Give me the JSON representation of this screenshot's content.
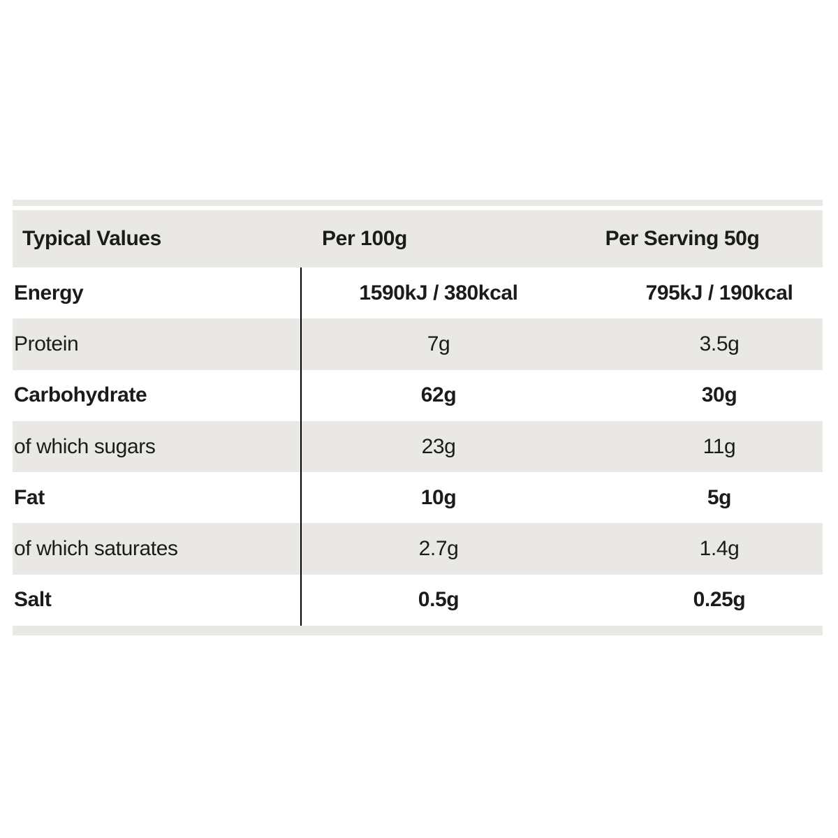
{
  "table": {
    "header": {
      "typical_values": "Typical Values",
      "per_100g": "Per 100g",
      "per_serving": "Per Serving 50g"
    },
    "rows": [
      {
        "nutrient": "Energy",
        "per_100g": "1590kJ / 380kcal",
        "per_serving": "795kJ / 190kcal",
        "emphasis": true
      },
      {
        "nutrient": "Protein",
        "per_100g": "7g",
        "per_serving": "3.5g",
        "emphasis": false
      },
      {
        "nutrient": "Carbohydrate",
        "per_100g": "62g",
        "per_serving": "30g",
        "emphasis": true
      },
      {
        "nutrient": "of which sugars",
        "per_100g": "23g",
        "per_serving": "11g",
        "emphasis": false
      },
      {
        "nutrient": "Fat",
        "per_100g": "10g",
        "per_serving": "5g",
        "emphasis": true
      },
      {
        "nutrient": "of which saturates",
        "per_100g": "2.7g",
        "per_serving": "1.4g",
        "emphasis": false
      },
      {
        "nutrient": "Salt",
        "per_100g": "0.5g",
        "per_serving": "0.25g",
        "emphasis": true
      }
    ]
  },
  "colors": {
    "stripe": "#e9e8e5",
    "text": "#1b1b19",
    "divider": "#000000",
    "page_background": "#ffffff"
  }
}
